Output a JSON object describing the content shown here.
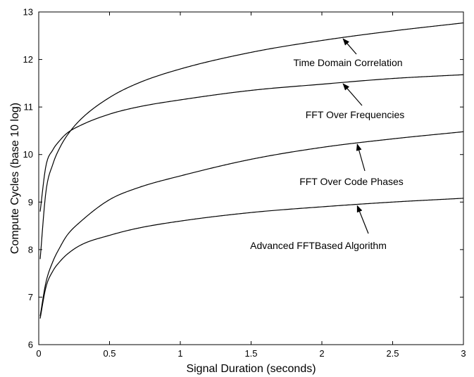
{
  "chart_data": {
    "type": "line",
    "title": "",
    "xlabel": "Signal Duration (seconds)",
    "ylabel": "Compute Cycles (base 10 log)",
    "xlim": [
      0,
      3
    ],
    "ylim": [
      6,
      13
    ],
    "xticks": [
      0,
      0.5,
      1,
      1.5,
      2,
      2.5,
      3
    ],
    "xtick_labels": [
      "0",
      "0.5",
      "1",
      "1.5",
      "2",
      "2.5",
      "3"
    ],
    "yticks": [
      6,
      7,
      8,
      9,
      10,
      11,
      12,
      13
    ],
    "ytick_labels": [
      "6",
      "7",
      "8",
      "9",
      "10",
      "11",
      "12",
      "13"
    ],
    "grid": false,
    "legend": "none",
    "line_color": "#000000",
    "series": [
      {
        "name": "Time Domain Correlation",
        "x": [
          0.01,
          0.05,
          0.1,
          0.15,
          0.2,
          0.3,
          0.5,
          0.7,
          1.0,
          1.5,
          2.0,
          2.5,
          3.0
        ],
        "y": [
          7.8,
          9.2,
          9.8,
          10.15,
          10.4,
          10.75,
          11.2,
          11.5,
          11.8,
          12.15,
          12.4,
          12.6,
          12.77
        ]
      },
      {
        "name": "FFT Over Frequencies",
        "x": [
          0.01,
          0.05,
          0.1,
          0.15,
          0.2,
          0.3,
          0.5,
          0.7,
          1.0,
          1.5,
          2.0,
          2.5,
          3.0
        ],
        "y": [
          8.8,
          9.75,
          10.1,
          10.3,
          10.45,
          10.62,
          10.85,
          11.0,
          11.15,
          11.35,
          11.48,
          11.6,
          11.68
        ]
      },
      {
        "name": "FFT Over Code Phases",
        "x": [
          0.01,
          0.05,
          0.1,
          0.15,
          0.2,
          0.3,
          0.5,
          0.7,
          1.0,
          1.5,
          2.0,
          2.5,
          3.0
        ],
        "y": [
          6.6,
          7.3,
          7.75,
          8.05,
          8.3,
          8.6,
          9.05,
          9.3,
          9.55,
          9.9,
          10.15,
          10.33,
          10.48
        ]
      },
      {
        "name": "Advanced FFTBased Algorithm",
        "x": [
          0.01,
          0.05,
          0.1,
          0.15,
          0.2,
          0.3,
          0.5,
          0.7,
          1.0,
          1.5,
          2.0,
          2.5,
          3.0
        ],
        "y": [
          6.55,
          7.2,
          7.55,
          7.75,
          7.9,
          8.1,
          8.3,
          8.45,
          8.6,
          8.78,
          8.9,
          9.0,
          9.08
        ]
      }
    ],
    "annotations": [
      {
        "text": "Time Domain Correlation",
        "series": 0,
        "arrow_to_x": 2.15
      },
      {
        "text": "FFT Over Frequencies",
        "series": 1,
        "arrow_to_x": 2.15
      },
      {
        "text": "FFT Over Code Phases",
        "series": 2,
        "arrow_to_x": 2.25
      },
      {
        "text": "Advanced FFTBased Algorithm",
        "series": 3,
        "arrow_to_x": 2.25
      }
    ]
  }
}
